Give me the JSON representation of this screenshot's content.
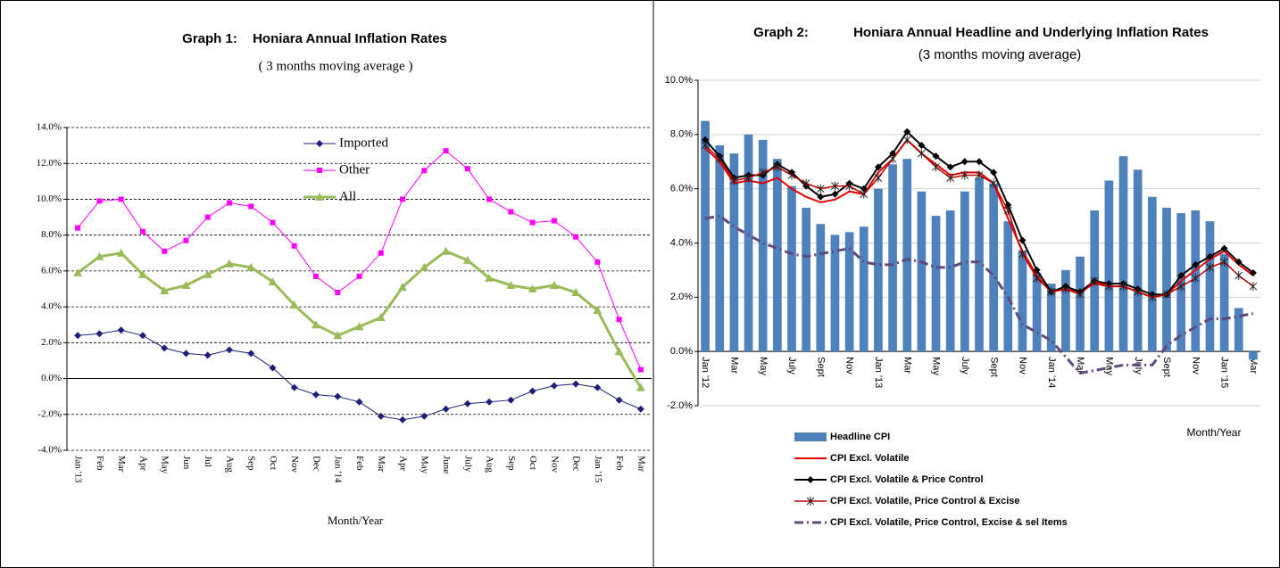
{
  "chart_data": [
    {
      "type": "line",
      "title_number": "Graph 1:",
      "title": "Honiara Annual Inflation Rates",
      "subtitle": "( 3 months moving average )",
      "x_label": "Month/Year",
      "categories": [
        "Jan '13",
        "Feb",
        "Mar",
        "Apr",
        "May",
        "Jun",
        "Jul",
        "Aug",
        "Sep",
        "Oct",
        "Nov",
        "Dec",
        "Jan '14",
        "Feb",
        "Mar",
        "Apr",
        "May",
        "June",
        "July",
        "Aug",
        "Sep",
        "Oct",
        "Nov",
        "Dec",
        "Jan '15",
        "Feb",
        "Mar"
      ],
      "ylim": [
        -4,
        14
      ],
      "yticks": [
        {
          "value": -4,
          "label": "-4.0%"
        },
        {
          "value": -2,
          "label": "-2.0%"
        },
        {
          "value": 0,
          "label": "0.0%"
        },
        {
          "value": 2,
          "label": "2.0%"
        },
        {
          "value": 4,
          "label": "4.0%"
        },
        {
          "value": 6,
          "label": "6.0%"
        },
        {
          "value": 8,
          "label": "8.0%"
        },
        {
          "value": 10,
          "label": "10.0%"
        },
        {
          "value": 12,
          "label": "12.0%"
        },
        {
          "value": 14,
          "label": "14.0%"
        }
      ],
      "grid": "dashed",
      "series": [
        {
          "name": "Imported",
          "color": "#1f1f7a",
          "marker": "diamond",
          "width": 1,
          "values": [
            2.4,
            2.5,
            2.7,
            2.4,
            1.7,
            1.4,
            1.3,
            1.6,
            1.4,
            0.6,
            -0.5,
            -0.9,
            -1.0,
            -1.3,
            -2.1,
            -2.3,
            -2.1,
            -1.7,
            -1.4,
            -1.3,
            -1.2,
            -0.7,
            -0.4,
            -0.3,
            -0.5,
            -1.2,
            -1.7
          ]
        },
        {
          "name": "Other",
          "color": "#ff00ff",
          "marker": "square",
          "width": 1,
          "values": [
            8.4,
            9.9,
            10.0,
            8.2,
            7.1,
            7.7,
            9.0,
            9.8,
            9.6,
            8.7,
            7.4,
            5.7,
            4.8,
            5.7,
            7.0,
            10.0,
            11.6,
            12.7,
            11.7,
            10.0,
            9.3,
            8.7,
            8.8,
            7.9,
            6.5,
            3.3,
            0.5
          ]
        },
        {
          "name": "All",
          "color": "#9bbb59",
          "marker": "triangle",
          "width": 3,
          "values": [
            5.9,
            6.8,
            7.0,
            5.8,
            4.9,
            5.2,
            5.8,
            6.4,
            6.2,
            5.4,
            4.1,
            3.0,
            2.4,
            2.9,
            3.4,
            5.1,
            6.2,
            7.1,
            6.6,
            5.6,
            5.2,
            5.0,
            5.2,
            4.8,
            3.8,
            1.5,
            -0.5
          ]
        }
      ]
    },
    {
      "type": "combo",
      "title_number": "Graph 2:",
      "title": "Honiara Annual Headline and Underlying Inflation Rates",
      "subtitle": "(3 months moving average)",
      "x_label": "Month/Year",
      "categories": [
        "Jan '12",
        null,
        "Mar",
        null,
        "May",
        null,
        "July",
        null,
        "Sept",
        null,
        "Nov",
        null,
        "Jan '13",
        null,
        "Mar",
        null,
        "May",
        null,
        "July",
        null,
        "Sept",
        null,
        "Nov",
        null,
        "Jan '14",
        null,
        "Mar",
        null,
        "May",
        null,
        "July",
        null,
        "Sept",
        null,
        "Nov",
        null,
        "Jan '15",
        null,
        "Mar"
      ],
      "ylim": [
        -2,
        10
      ],
      "yticks": [
        {
          "value": -2,
          "label": "-2.0%"
        },
        {
          "value": 0,
          "label": "0.0%"
        },
        {
          "value": 2,
          "label": "2.0%"
        },
        {
          "value": 4,
          "label": "4.0%"
        },
        {
          "value": 6,
          "label": "6.0%"
        },
        {
          "value": 8,
          "label": "8.0%"
        },
        {
          "value": 10,
          "label": "10.0%"
        }
      ],
      "grid": "solid",
      "series": [
        {
          "name": "Headline CPI",
          "type": "bar",
          "color": "#4f81bd",
          "values": [
            8.5,
            7.6,
            7.3,
            8.0,
            7.8,
            7.1,
            6.1,
            5.3,
            4.7,
            4.3,
            4.4,
            4.6,
            6.0,
            6.9,
            7.1,
            5.9,
            5.0,
            5.2,
            5.9,
            6.4,
            6.2,
            4.8,
            3.7,
            2.9,
            2.5,
            3.0,
            3.5,
            5.2,
            6.3,
            7.2,
            6.7,
            5.7,
            5.3,
            5.1,
            5.2,
            4.8,
            3.6,
            1.6,
            -0.3
          ]
        },
        {
          "name": "CPI Excl. Volatile",
          "type": "line",
          "color": "#e00000",
          "marker": "none",
          "width": 2,
          "values": [
            7.5,
            7.0,
            6.2,
            6.3,
            6.2,
            6.4,
            6.0,
            5.7,
            5.5,
            5.6,
            5.9,
            5.8,
            6.6,
            7.1,
            7.8,
            7.3,
            6.9,
            6.5,
            6.6,
            6.6,
            6.2,
            4.9,
            3.7,
            2.8,
            2.2,
            2.3,
            2.2,
            2.5,
            2.4,
            2.4,
            2.2,
            2.0,
            2.1,
            2.6,
            3.0,
            3.4,
            3.7,
            3.2,
            2.8
          ]
        },
        {
          "name": "CPI Excl. Volatile & Price Control",
          "type": "line",
          "color": "#000000",
          "marker": "diamond",
          "width": 2,
          "values": [
            7.8,
            7.2,
            6.4,
            6.5,
            6.5,
            6.9,
            6.6,
            6.1,
            5.7,
            5.8,
            6.2,
            6.0,
            6.8,
            7.3,
            8.1,
            7.6,
            7.2,
            6.8,
            7.0,
            7.0,
            6.6,
            5.4,
            4.1,
            3.0,
            2.2,
            2.4,
            2.2,
            2.6,
            2.5,
            2.5,
            2.3,
            2.1,
            2.1,
            2.8,
            3.2,
            3.5,
            3.8,
            3.3,
            2.9
          ]
        },
        {
          "name": "CPI Excl. Volatile, Price Control & Excise",
          "type": "line",
          "color": "#c00000",
          "marker": "star",
          "width": 1.5,
          "values": [
            7.6,
            7.1,
            6.3,
            6.4,
            6.6,
            6.8,
            6.5,
            6.2,
            6.0,
            6.1,
            6.1,
            5.8,
            6.4,
            7.1,
            7.8,
            7.3,
            6.8,
            6.4,
            6.5,
            6.5,
            6.2,
            5.2,
            3.6,
            2.7,
            2.2,
            2.3,
            2.1,
            2.6,
            2.4,
            2.4,
            2.2,
            2.0,
            2.1,
            2.4,
            2.7,
            3.1,
            3.3,
            2.8,
            2.4
          ]
        },
        {
          "name": "CPI Excl. Volatile, Price Control, Excise & sel Items",
          "type": "line",
          "color": "#604a7b",
          "marker": "none",
          "width": 3,
          "dash": "dashdot",
          "values": [
            4.9,
            5.0,
            4.6,
            4.3,
            4.0,
            3.8,
            3.6,
            3.5,
            3.6,
            3.7,
            3.8,
            3.3,
            3.2,
            3.2,
            3.4,
            3.3,
            3.1,
            3.1,
            3.3,
            3.3,
            2.8,
            2.0,
            1.0,
            0.7,
            0.4,
            -0.2,
            -0.8,
            -0.7,
            -0.6,
            -0.5,
            -0.5,
            -0.5,
            0.2,
            0.6,
            0.9,
            1.2,
            1.2,
            1.3,
            1.4
          ]
        }
      ]
    }
  ]
}
